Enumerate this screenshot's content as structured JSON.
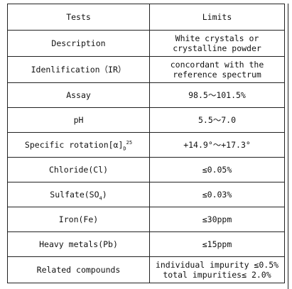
{
  "header": {
    "tests": "Tests",
    "limits": "Limits"
  },
  "rows": [
    {
      "test": "Description",
      "limit": "White crystals or\ncrystalline powder"
    },
    {
      "test": "Idenlification（IR）",
      "limit": "concordant with the\nreference  spectrum"
    },
    {
      "test": "Assay",
      "limit": "98.5～101.5%"
    },
    {
      "test": "pH",
      "limit": "5.5～7.0"
    },
    {
      "test": "Specific rotation[α]",
      "test_sub": "D",
      "test_sup": "25",
      "limit": "+14.9°～+17.3°"
    },
    {
      "test": "Chloride(Cl)",
      "limit": "≤0.05%"
    },
    {
      "test": "Sulfate(SO",
      "test_sub": "4",
      "test_after": ")",
      "limit": "≤0.03%"
    },
    {
      "test": "Iron(Fe)",
      "limit": "≤30ppm"
    },
    {
      "test": "Heavy metals(Pb)",
      "limit": "≤15ppm"
    },
    {
      "test": "Related compounds",
      "limit": "individual impurity ≤0.5%\ntotal impurities≤ 2.0%"
    }
  ]
}
